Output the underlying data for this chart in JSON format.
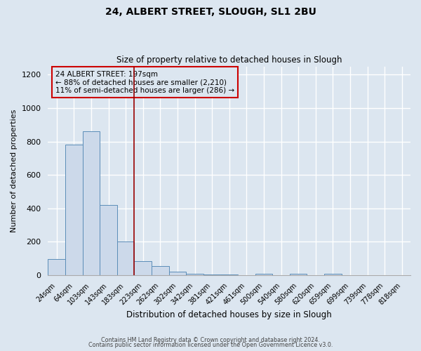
{
  "title": "24, ALBERT STREET, SLOUGH, SL1 2BU",
  "subtitle": "Size of property relative to detached houses in Slough",
  "xlabel": "Distribution of detached houses by size in Slough",
  "ylabel": "Number of detached properties",
  "bar_color": "#ccd9ea",
  "bar_edge_color": "#5b8db8",
  "background_color": "#dce6f0",
  "grid_color": "#ffffff",
  "categories": [
    "24sqm",
    "64sqm",
    "103sqm",
    "143sqm",
    "183sqm",
    "223sqm",
    "262sqm",
    "302sqm",
    "342sqm",
    "381sqm",
    "421sqm",
    "461sqm",
    "500sqm",
    "540sqm",
    "580sqm",
    "620sqm",
    "659sqm",
    "699sqm",
    "739sqm",
    "778sqm",
    "818sqm"
  ],
  "values": [
    95,
    780,
    860,
    420,
    200,
    85,
    55,
    22,
    8,
    5,
    4,
    0,
    8,
    0,
    8,
    0,
    8,
    0,
    0,
    0,
    0
  ],
  "vline_pos": 4.5,
  "vline_color": "#990000",
  "annotation_title": "24 ALBERT STREET: 197sqm",
  "annotation_line1": "← 88% of detached houses are smaller (2,210)",
  "annotation_line2": "11% of semi-detached houses are larger (286) →",
  "annotation_box_edge": "#cc0000",
  "ylim": [
    0,
    1250
  ],
  "yticks": [
    0,
    200,
    400,
    600,
    800,
    1000,
    1200
  ],
  "footer1": "Contains HM Land Registry data © Crown copyright and database right 2024.",
  "footer2": "Contains public sector information licensed under the Open Government Licence v3.0."
}
